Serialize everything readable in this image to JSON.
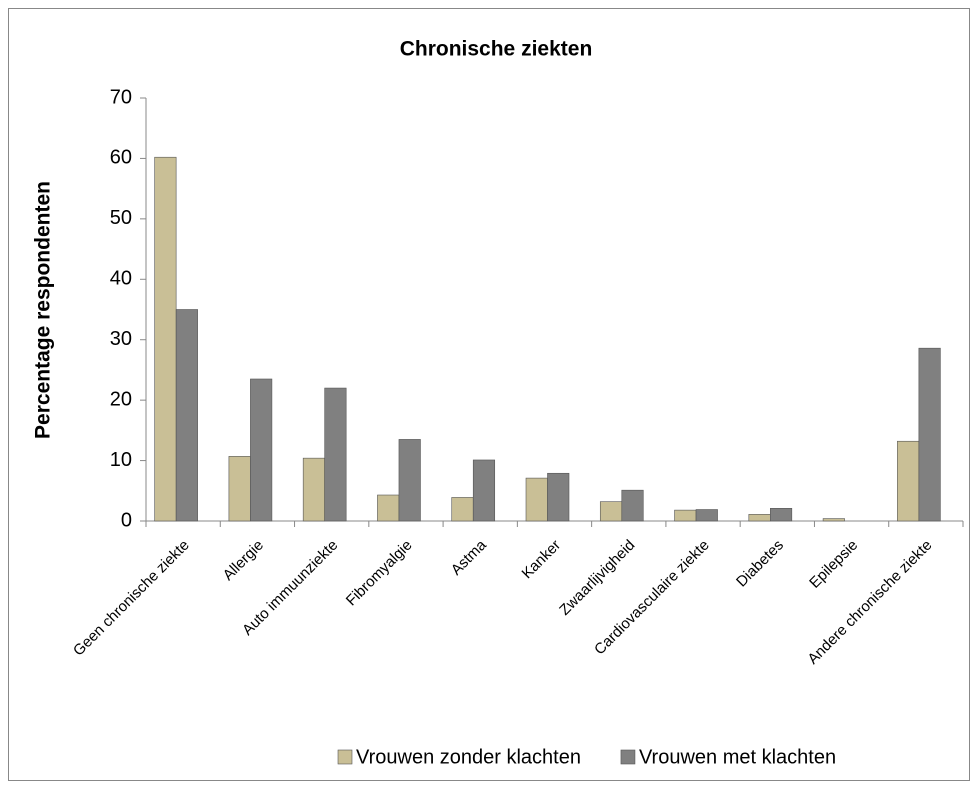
{
  "chart_data": {
    "type": "bar",
    "title": "Chronische ziekten",
    "y_label": "Percentage respondenten",
    "categories": [
      "Geen chronische ziekte",
      "Allergie",
      "Auto immuunziekte",
      "Fibromyalgie",
      "Astma",
      "Kanker",
      "Zwaarlijvigheid",
      "Cardiovasculaire ziekte",
      "Diabetes",
      "Epilepsie",
      "Andere chronische ziekte"
    ],
    "series": [
      {
        "name": "Vrouwen zonder klachten",
        "color": "#c9bf96",
        "values": [
          60.2,
          10.7,
          10.4,
          4.3,
          3.9,
          7.1,
          3.2,
          1.8,
          1.1,
          0.4,
          13.2
        ]
      },
      {
        "name": "Vrouwen met klachten",
        "color": "#808080",
        "values": [
          35.0,
          23.5,
          22.0,
          13.5,
          10.1,
          7.9,
          5.1,
          1.9,
          2.1,
          0,
          28.6
        ]
      }
    ],
    "ylim": [
      0,
      70
    ],
    "yticks": [
      0,
      10,
      20,
      30,
      40,
      50,
      60,
      70
    ],
    "grid": false,
    "legend": "bottom"
  }
}
